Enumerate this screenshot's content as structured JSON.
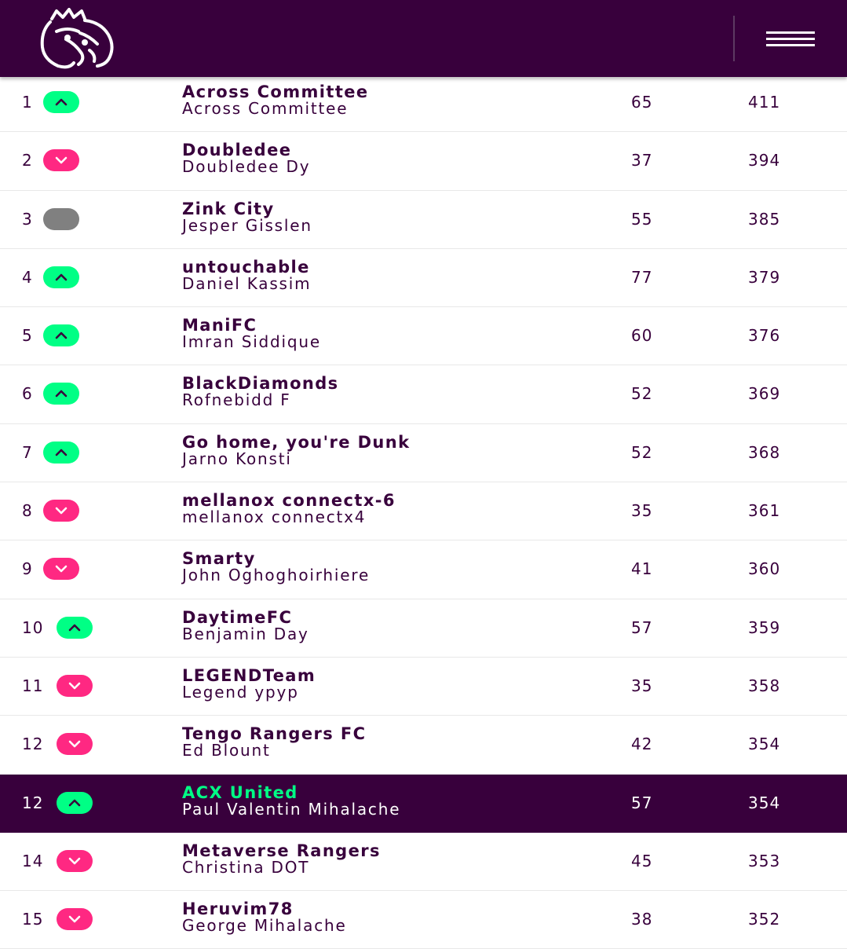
{
  "header": {
    "logo_icon": "premier-league-lion-icon",
    "menu_icon": "hamburger-menu-icon",
    "background": "#38003c"
  },
  "colors": {
    "up": "#00ff85",
    "down": "#ff2882",
    "same": "#808080",
    "primary": "#38003c"
  },
  "standings": [
    {
      "rank": "1",
      "movement": "up",
      "team": "Across Committee",
      "manager": "Across Committee",
      "gw": "65",
      "total": "411"
    },
    {
      "rank": "2",
      "movement": "down",
      "team": "Doubledee",
      "manager": "Doubledee Dy",
      "gw": "37",
      "total": "394"
    },
    {
      "rank": "3",
      "movement": "same",
      "team": "Zink City",
      "manager": "Jesper Gisslen",
      "gw": "55",
      "total": "385"
    },
    {
      "rank": "4",
      "movement": "up",
      "team": "untouchable",
      "manager": "Daniel Kassim",
      "gw": "77",
      "total": "379"
    },
    {
      "rank": "5",
      "movement": "up",
      "team": "ManiFC",
      "manager": "Imran Siddique",
      "gw": "60",
      "total": "376"
    },
    {
      "rank": "6",
      "movement": "up",
      "team": "BlackDiamonds",
      "manager": "Rofnebidd F",
      "gw": "52",
      "total": "369"
    },
    {
      "rank": "7",
      "movement": "up",
      "team": "Go home, you're Dunk",
      "manager": "Jarno Konsti",
      "gw": "52",
      "total": "368"
    },
    {
      "rank": "8",
      "movement": "down",
      "team": "mellanox connectx-6",
      "manager": "mellanox connectx4",
      "gw": "35",
      "total": "361"
    },
    {
      "rank": "9",
      "movement": "down",
      "team": "Smarty",
      "manager": "John Oghoghoirhiere",
      "gw": "41",
      "total": "360"
    },
    {
      "rank": "10",
      "movement": "up",
      "team": "DaytimeFC",
      "manager": "Benjamin Day",
      "gw": "57",
      "total": "359"
    },
    {
      "rank": "11",
      "movement": "down",
      "team": "LEGENDTeam",
      "manager": "Legend ypyp",
      "gw": "35",
      "total": "358"
    },
    {
      "rank": "12",
      "movement": "down",
      "team": "Tengo Rangers FC",
      "manager": "Ed Blount",
      "gw": "42",
      "total": "354"
    },
    {
      "rank": "12",
      "movement": "up",
      "team": "ACX United",
      "manager": "Paul Valentin Mihalache",
      "gw": "57",
      "total": "354",
      "highlight": true
    },
    {
      "rank": "14",
      "movement": "down",
      "team": "Metaverse Rangers",
      "manager": "Christina DOT",
      "gw": "45",
      "total": "353"
    },
    {
      "rank": "15",
      "movement": "down",
      "team": "Heruvim78",
      "manager": "George Mihalache",
      "gw": "38",
      "total": "352"
    }
  ]
}
